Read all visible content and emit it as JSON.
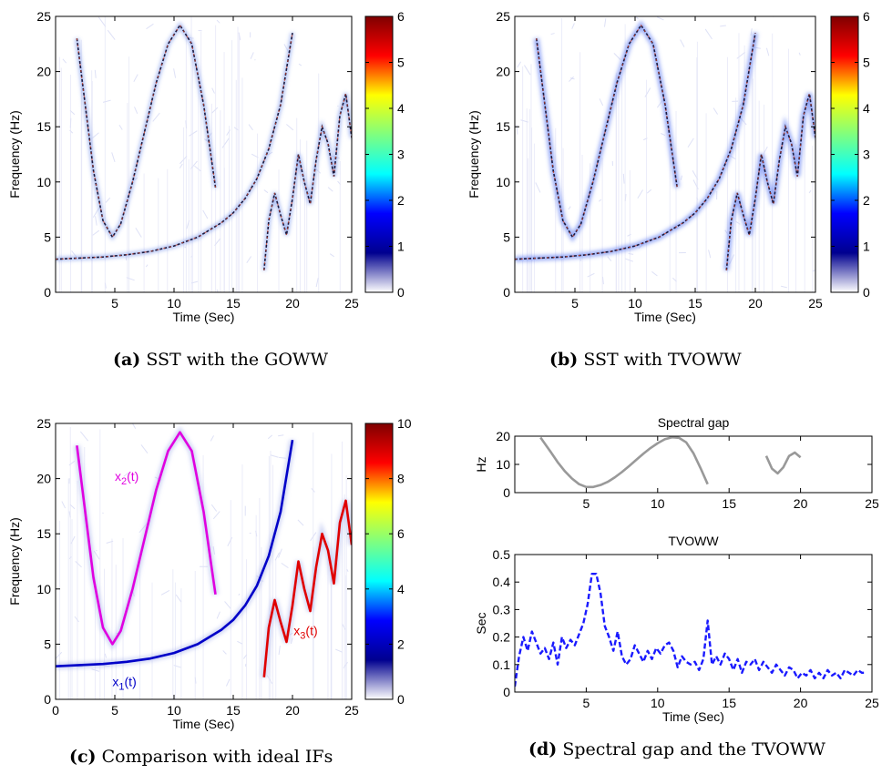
{
  "colors": {
    "jet": [
      "#ffffff",
      "#00008f",
      "#0000ff",
      "#00ffff",
      "#7fff7f",
      "#ffff00",
      "#ff0000",
      "#7f0000"
    ],
    "magenta": "#e000e0",
    "blue": "#0000c8",
    "red": "#e00000",
    "gray": "#999999",
    "dash": "#1a1aff"
  },
  "captions": [
    {
      "label": "(a)",
      "text": "SST with the GOWW"
    },
    {
      "label": "(b)",
      "text": "SST with TVOWW"
    },
    {
      "label": "(c)",
      "text": "Comparison with ideal IFs"
    },
    {
      "label": "(d)",
      "text": "Spectral gap and the TVOWW"
    }
  ],
  "chart_data": [
    {
      "type": "heatmap",
      "id": "a",
      "xlabel": "Time (Sec)",
      "ylabel": "Frequency (Hz)",
      "xlim": [
        0,
        25
      ],
      "ylim": [
        0,
        25
      ],
      "xticks": [
        5,
        10,
        15,
        20,
        25
      ],
      "yticks": [
        0,
        5,
        10,
        15,
        20,
        25
      ],
      "colorbar": {
        "min": 0,
        "max": 6,
        "ticks": [
          0,
          1,
          2,
          3,
          4,
          5,
          6
        ]
      },
      "ridges": [
        {
          "name": "",
          "x": [
            0,
            2,
            4,
            5,
            6,
            8,
            10,
            12,
            14,
            15,
            16,
            17,
            18,
            19,
            20
          ],
          "y": [
            3,
            3.1,
            3.2,
            3.3,
            3.4,
            3.7,
            4.2,
            5,
            6.3,
            7.2,
            8.5,
            10.3,
            13,
            17,
            23.5
          ]
        },
        {
          "name": "",
          "x": [
            1.8,
            2.5,
            3.2,
            4,
            4.8,
            5.5,
            6.5,
            7.5,
            8.5,
            9.5,
            10.5,
            11.5,
            12.5,
            13.5
          ],
          "y": [
            23,
            17,
            11,
            6.5,
            5,
            6.2,
            10,
            14.5,
            19,
            22.5,
            24.2,
            22.5,
            17,
            9.5
          ]
        },
        {
          "name": "",
          "x": [
            17.6,
            18,
            18.5,
            19,
            19.5,
            20,
            20.5,
            21,
            21.5,
            22,
            22.5,
            23,
            23.5,
            24,
            24.5,
            25
          ],
          "y": [
            2,
            6.5,
            9,
            7,
            5.2,
            8.5,
            12.5,
            10,
            8,
            12,
            15,
            13.5,
            10.5,
            16,
            18,
            14
          ]
        }
      ]
    },
    {
      "type": "heatmap",
      "id": "b",
      "xlabel": "Time (Sec)",
      "ylabel": "Frequency (Hz)",
      "xlim": [
        0,
        25
      ],
      "ylim": [
        0,
        25
      ],
      "xticks": [
        5,
        10,
        15,
        20,
        25
      ],
      "yticks": [
        0,
        5,
        10,
        15,
        20,
        25
      ],
      "colorbar": {
        "min": 0,
        "max": 6,
        "ticks": [
          0,
          1,
          2,
          3,
          4,
          5,
          6
        ]
      },
      "ridges": [
        {
          "name": "",
          "x": [
            0,
            2,
            4,
            5,
            6,
            8,
            10,
            12,
            14,
            15,
            16,
            17,
            18,
            19,
            20
          ],
          "y": [
            3,
            3.1,
            3.2,
            3.3,
            3.4,
            3.7,
            4.2,
            5,
            6.3,
            7.2,
            8.5,
            10.3,
            13,
            17,
            23.5
          ]
        },
        {
          "name": "",
          "x": [
            1.8,
            2.5,
            3.2,
            4,
            4.8,
            5.5,
            6.5,
            7.5,
            8.5,
            9.5,
            10.5,
            11.5,
            12.5,
            13.5
          ],
          "y": [
            23,
            17,
            11,
            6.5,
            5,
            6.2,
            10,
            14.5,
            19,
            22.5,
            24.2,
            22.5,
            17,
            9.5
          ]
        },
        {
          "name": "",
          "x": [
            17.6,
            18,
            18.5,
            19,
            19.5,
            20,
            20.5,
            21,
            21.5,
            22,
            22.5,
            23,
            23.5,
            24,
            24.5,
            25
          ],
          "y": [
            2,
            6.5,
            9,
            7,
            5.2,
            8.5,
            12.5,
            10,
            8,
            12,
            15,
            13.5,
            10.5,
            16,
            18,
            14
          ]
        }
      ]
    },
    {
      "type": "heatmap",
      "id": "c",
      "xlabel": "Time (Sec)",
      "ylabel": "Frequency (Hz)",
      "xlim": [
        0,
        25
      ],
      "ylim": [
        0,
        25
      ],
      "xticks": [
        0,
        5,
        10,
        15,
        20,
        25
      ],
      "yticks": [
        0,
        5,
        10,
        15,
        20,
        25
      ],
      "colorbar": {
        "min": 0,
        "max": 10,
        "ticks": [
          0,
          2,
          4,
          6,
          8,
          10
        ]
      },
      "ridges": [
        {
          "name": "x1(t)",
          "x": [
            0,
            2,
            4,
            5,
            6,
            8,
            10,
            12,
            14,
            15,
            16,
            17,
            18,
            19,
            20
          ],
          "y": [
            3,
            3.1,
            3.2,
            3.3,
            3.4,
            3.7,
            4.2,
            5,
            6.3,
            7.2,
            8.5,
            10.3,
            13,
            17,
            23.5
          ]
        },
        {
          "name": "x2(t)",
          "x": [
            1.8,
            2.5,
            3.2,
            4,
            4.8,
            5.5,
            6.5,
            7.5,
            8.5,
            9.5,
            10.5,
            11.5,
            12.5,
            13.5
          ],
          "y": [
            23,
            17,
            11,
            6.5,
            5,
            6.2,
            10,
            14.5,
            19,
            22.5,
            24.2,
            22.5,
            17,
            9.5
          ]
        },
        {
          "name": "x3(t)",
          "x": [
            17.6,
            18,
            18.5,
            19,
            19.5,
            20,
            20.5,
            21,
            21.5,
            22,
            22.5,
            23,
            23.5,
            24,
            24.5,
            25
          ],
          "y": [
            2,
            6.5,
            9,
            7,
            5.2,
            8.5,
            12.5,
            10,
            8,
            12,
            15,
            13.5,
            10.5,
            16,
            18,
            14
          ]
        }
      ],
      "labels": [
        {
          "base": "x",
          "sub": "1",
          "tail": "(t)",
          "x": 4.8,
          "y": 1.2,
          "color": "blue"
        },
        {
          "base": "x",
          "sub": "2",
          "tail": "(t)",
          "x": 5,
          "y": 19.8,
          "color": "magenta"
        },
        {
          "base": "x",
          "sub": "3",
          "tail": "(t)",
          "x": 20.1,
          "y": 5.8,
          "color": "red"
        }
      ]
    },
    {
      "type": "line",
      "id": "d1",
      "title": "Spectral gap",
      "xlabel": "",
      "ylabel": "Hz",
      "xlim": [
        0,
        25
      ],
      "ylim": [
        0,
        20
      ],
      "xticks": [
        5,
        10,
        15,
        20,
        25
      ],
      "yticks": [
        0,
        10,
        20
      ],
      "series": [
        {
          "x": [
            1.8,
            2.5,
            3,
            3.5,
            4,
            4.5,
            5,
            5.5,
            6,
            6.5,
            7,
            7.5,
            8,
            8.5,
            9,
            9.5,
            10,
            10.5,
            11,
            11.5,
            12,
            12.5,
            13,
            13.5
          ],
          "y": [
            19.5,
            14.5,
            10.8,
            7.6,
            5,
            3,
            2,
            2,
            2.7,
            3.8,
            5.4,
            7.3,
            9.4,
            11.6,
            13.8,
            15.8,
            17.5,
            18.9,
            19.6,
            19.4,
            17.8,
            14,
            8.7,
            3
          ]
        },
        {
          "x": [
            17.6,
            18,
            18.4,
            18.8,
            19.2,
            19.6,
            20
          ],
          "y": [
            13,
            8.5,
            6.8,
            9,
            13,
            14.2,
            12.5
          ]
        }
      ]
    },
    {
      "type": "line",
      "id": "d2",
      "title": "TVOWW",
      "xlabel": "Time (Sec)",
      "ylabel": "Sec",
      "xlim": [
        0,
        25
      ],
      "ylim": [
        0,
        0.5
      ],
      "xticks": [
        5,
        10,
        15,
        20,
        25
      ],
      "yticks": [
        0,
        0.1,
        0.2,
        0.3,
        0.4,
        0.5
      ],
      "series": [
        {
          "x": [
            0,
            0.3,
            0.6,
            0.9,
            1.2,
            1.5,
            1.8,
            2.1,
            2.4,
            2.7,
            3,
            3.3,
            3.6,
            3.9,
            4.2,
            4.5,
            4.8,
            5.1,
            5.4,
            5.7,
            6,
            6.3,
            6.6,
            6.9,
            7.2,
            7.5,
            7.8,
            8.1,
            8.4,
            8.7,
            9,
            9.3,
            9.6,
            9.9,
            10.2,
            10.5,
            10.8,
            11.1,
            11.4,
            11.7,
            12,
            12.3,
            12.6,
            12.9,
            13.2,
            13.5,
            13.8,
            14.1,
            14.4,
            14.7,
            15,
            15.3,
            15.6,
            15.9,
            16.2,
            16.5,
            16.8,
            17.1,
            17.4,
            17.7,
            18,
            18.3,
            18.6,
            18.9,
            19.2,
            19.5,
            19.8,
            20.1,
            20.4,
            20.7,
            21,
            21.3,
            21.6,
            21.9,
            22.2,
            22.5,
            22.8,
            23.1,
            23.4,
            23.7,
            24,
            24.3,
            24.6
          ],
          "y": [
            0.02,
            0.13,
            0.2,
            0.15,
            0.22,
            0.18,
            0.14,
            0.16,
            0.12,
            0.18,
            0.1,
            0.2,
            0.16,
            0.19,
            0.17,
            0.21,
            0.25,
            0.32,
            0.43,
            0.43,
            0.36,
            0.24,
            0.2,
            0.15,
            0.22,
            0.13,
            0.1,
            0.12,
            0.17,
            0.14,
            0.11,
            0.15,
            0.12,
            0.16,
            0.14,
            0.17,
            0.18,
            0.15,
            0.09,
            0.13,
            0.11,
            0.1,
            0.11,
            0.08,
            0.12,
            0.26,
            0.1,
            0.13,
            0.1,
            0.14,
            0.12,
            0.08,
            0.12,
            0.07,
            0.11,
            0.1,
            0.12,
            0.08,
            0.11,
            0.09,
            0.07,
            0.1,
            0.08,
            0.06,
            0.09,
            0.08,
            0.05,
            0.07,
            0.06,
            0.08,
            0.05,
            0.07,
            0.05,
            0.08,
            0.06,
            0.07,
            0.05,
            0.08,
            0.07,
            0.06,
            0.08,
            0.07,
            0.07
          ]
        }
      ]
    }
  ]
}
